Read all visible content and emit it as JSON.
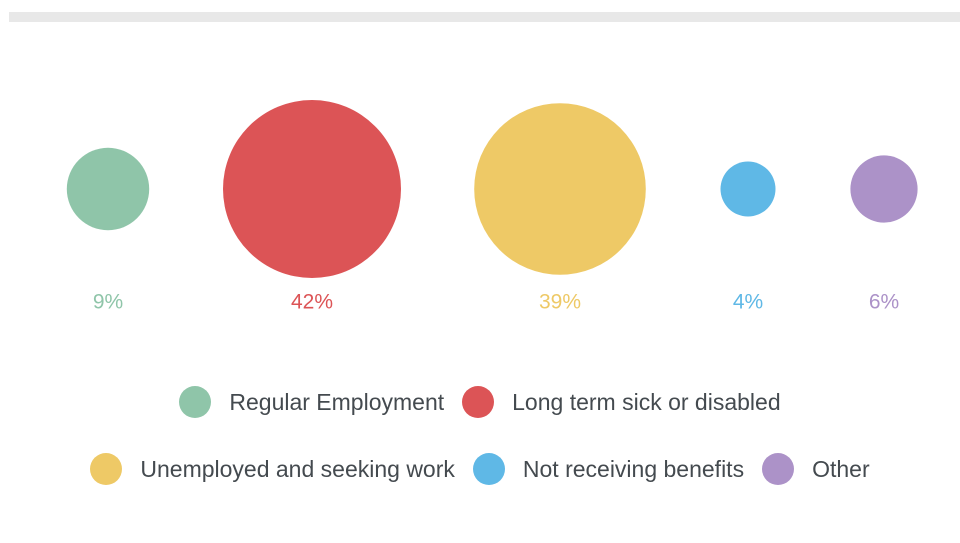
{
  "chart_data": {
    "type": "bubble",
    "title": "",
    "unit": "%",
    "series": [
      {
        "name": "Regular Employment",
        "value": 9,
        "label": "9%",
        "color": "#8fc5a9"
      },
      {
        "name": "Long term sick or disabled",
        "value": 42,
        "label": "42%",
        "color": "#dc5456"
      },
      {
        "name": "Unemployed and seeking work",
        "value": 39,
        "label": "39%",
        "color": "#eec966"
      },
      {
        "name": "Not receiving benefits",
        "value": 4,
        "label": "4%",
        "color": "#5fb8e6"
      },
      {
        "name": "Other",
        "value": 6,
        "label": "6%",
        "color": "#ac92c8"
      }
    ],
    "legend": {
      "placement": "bottom"
    }
  }
}
